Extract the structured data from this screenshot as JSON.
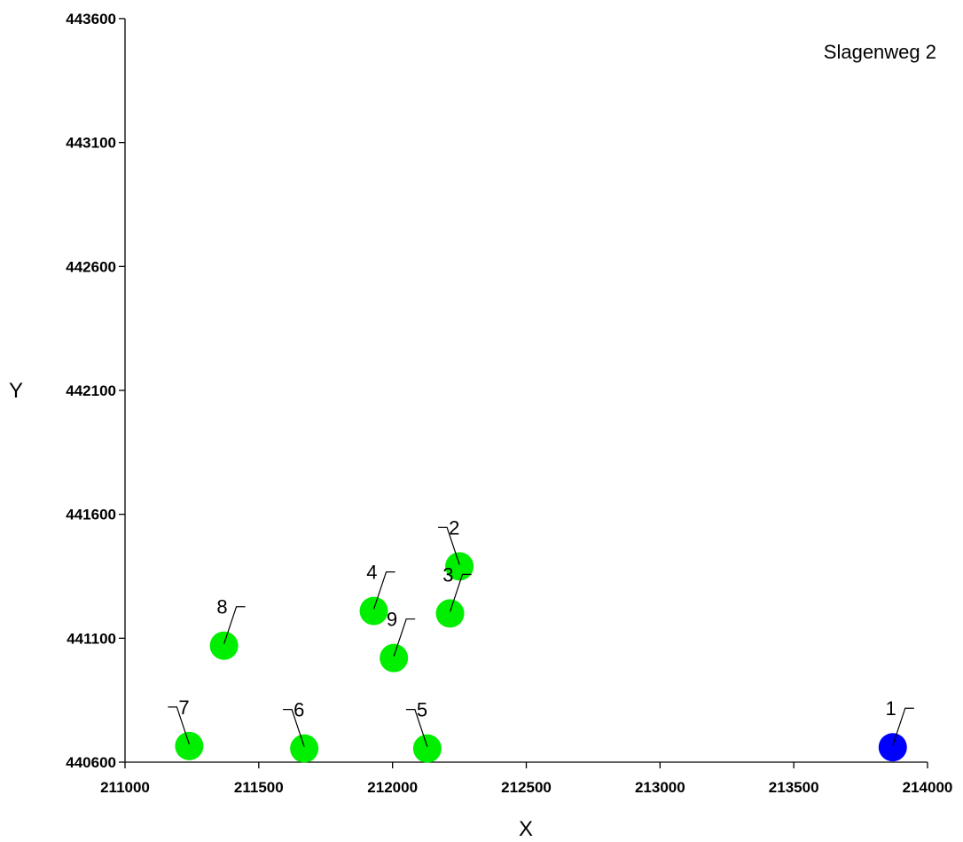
{
  "chart_data": {
    "type": "scatter",
    "title": "Slagenweg 2",
    "xlabel": "X",
    "ylabel": "Y",
    "xlim": [
      211000,
      214000
    ],
    "ylim": [
      440600,
      443600
    ],
    "xticks": [
      "211000",
      "211500",
      "212000",
      "212500",
      "213000",
      "213500",
      "214000"
    ],
    "yticks": [
      "440600",
      "441100",
      "441600",
      "442100",
      "442600",
      "443100",
      "443600"
    ],
    "grid": false,
    "colors": {
      "primary": "#0000ff",
      "secondary": "#00ee00"
    },
    "points": [
      {
        "label": "1",
        "x": 213870,
        "y": 440660,
        "color": "#0000ff",
        "label_side": "right"
      },
      {
        "label": "2",
        "x": 212250,
        "y": 441390,
        "color": "#00ee00",
        "label_side": "left"
      },
      {
        "label": "3",
        "x": 212215,
        "y": 441200,
        "color": "#00ee00",
        "label_side": "right"
      },
      {
        "label": "4",
        "x": 211930,
        "y": 441210,
        "color": "#00ee00",
        "label_side": "right"
      },
      {
        "label": "5",
        "x": 212130,
        "y": 440655,
        "color": "#00ee00",
        "label_side": "left"
      },
      {
        "label": "6",
        "x": 211670,
        "y": 440655,
        "color": "#00ee00",
        "label_side": "left"
      },
      {
        "label": "7",
        "x": 211240,
        "y": 440665,
        "color": "#00ee00",
        "label_side": "left"
      },
      {
        "label": "8",
        "x": 211370,
        "y": 441070,
        "color": "#00ee00",
        "label_side": "right"
      },
      {
        "label": "9",
        "x": 212005,
        "y": 441020,
        "color": "#00ee00",
        "label_side": "right"
      }
    ]
  }
}
